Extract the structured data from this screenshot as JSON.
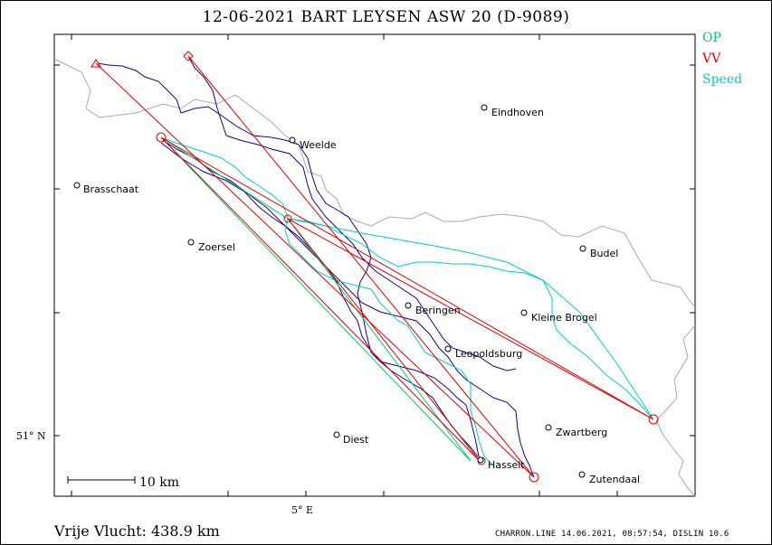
{
  "title": "12-06-2021   BART LEYSEN   ASW 20 (D-9089)",
  "legend": [
    {
      "label": "OP",
      "color": "#00cc66"
    },
    {
      "label": "VV",
      "color": "#dd0000"
    },
    {
      "label": "Speed",
      "color": "#00cccc"
    }
  ],
  "scale_label": "10 km",
  "axis": {
    "lat_label": "51° N",
    "lon_label": "5° E"
  },
  "places": [
    "Eindhoven",
    "Weelde",
    "Brasschaat",
    "Zoersel",
    "Budel",
    "Beringen",
    "Kleine Brogel",
    "Leopoldsburg",
    "Zwartberg",
    "Diest",
    "Hasselt",
    "Zutendaal"
  ],
  "footer": {
    "distance": "Vrije Vlucht:  438.9 km",
    "credit": "CHARRON.LINE 14.06.2021, 08:57:54, DISLIN 10.6"
  },
  "colors": {
    "track": "#1a0080",
    "border": "#aaaaaa",
    "vv": "#dd0000",
    "op": "#00cc66",
    "speed": "#00cccc"
  }
}
